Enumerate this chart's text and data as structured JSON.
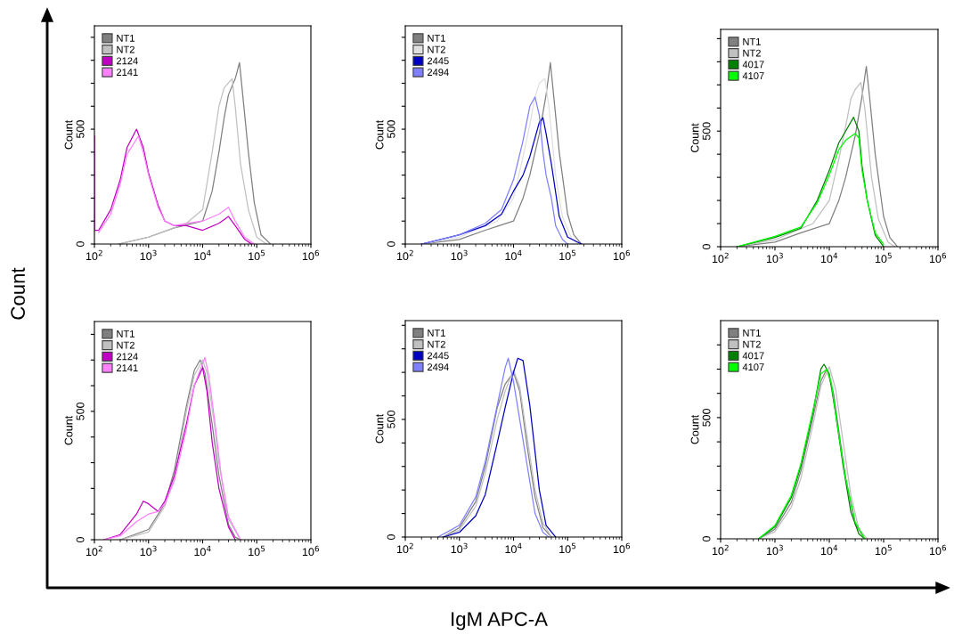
{
  "chart_data": [
    {
      "type": "line",
      "ylabel": "Count",
      "annotations": [
        "Count",
        "IgM APC-A"
      ],
      "legend": "top left",
      "log": "x",
      "grid": false,
      "marker": "none",
      "line_style": "solid",
      "xlim": [
        100,
        1000000
      ],
      "xticks": [
        {
          "value": 100,
          "label": "10$^{2}$"
        },
        {
          "value": 1000,
          "label": "10$^{3}$"
        },
        {
          "value": 10000,
          "label": "10$^{4}$"
        },
        {
          "value": 100000,
          "label": "10$^{5}$"
        },
        {
          "value": 1000000,
          "label": "10$^{6}$"
        }
      ],
      "ylim": [
        0,
        950
      ],
      "yticks": [
        0,
        {
          "value": 100,
          "label": null
        },
        {
          "value": 200,
          "label": null
        },
        {
          "value": 300,
          "label": null
        },
        {
          "value": 400,
          "label": null
        },
        500,
        {
          "value": 600,
          "label": null
        },
        {
          "value": 700,
          "label": null
        },
        {
          "value": 800,
          "label": null
        },
        {
          "value": 900,
          "label": null
        }
      ],
      "series": [
        {
          "name": "NT1",
          "color": "#808080",
          "x": [
            280,
            1000,
            3000,
            10000,
            15000,
            20000,
            25000,
            30000,
            40000,
            48000,
            55000,
            70000,
            90000,
            120000,
            180000
          ],
          "values": [
            0,
            30,
            70,
            100,
            230,
            400,
            550,
            650,
            720,
            790,
            650,
            400,
            180,
            40,
            0
          ]
        },
        {
          "name": "NT2",
          "color": "#c0c0c0",
          "x": [
            280,
            1000,
            5000,
            10000,
            15000,
            20000,
            25000,
            35000,
            40000,
            50000,
            70000,
            100000,
            150000
          ],
          "values": [
            0,
            30,
            90,
            150,
            400,
            600,
            680,
            720,
            600,
            350,
            150,
            30,
            0
          ]
        },
        {
          "name": "2124",
          "color": "#c000c0",
          "x": [
            100,
            100,
            120,
            200,
            300,
            400,
            600,
            800,
            1000,
            1500,
            2000,
            3000,
            5000,
            10000,
            20000,
            30000,
            40000,
            60000,
            80000
          ],
          "values": [
            470,
            60,
            60,
            150,
            280,
            420,
            500,
            420,
            310,
            170,
            100,
            80,
            80,
            60,
            90,
            120,
            80,
            20,
            0
          ]
        },
        {
          "name": "2141",
          "color": "#ff80ff",
          "x": [
            120,
            200,
            300,
            400,
            650,
            800,
            1000,
            1500,
            2000,
            3000,
            5000,
            10000,
            20000,
            30000,
            40000,
            60000,
            90000
          ],
          "values": [
            50,
            130,
            260,
            390,
            470,
            400,
            300,
            160,
            100,
            80,
            90,
            100,
            130,
            160,
            100,
            30,
            0
          ]
        }
      ]
    },
    {
      "type": "line",
      "ylabel": "Count",
      "legend": "top left",
      "log": "x",
      "grid": false,
      "marker": "none",
      "line_style": "solid",
      "xlim": [
        100,
        1000000
      ],
      "xticks": [
        {
          "value": 100,
          "label": "10$^{2}$"
        },
        {
          "value": 1000,
          "label": "10$^{3}$"
        },
        {
          "value": 10000,
          "label": "10$^{4}$"
        },
        {
          "value": 100000,
          "label": "10$^{5}$"
        },
        {
          "value": 1000000,
          "label": "10$^{6}$"
        }
      ],
      "ylim": [
        0,
        950
      ],
      "yticks": [
        0,
        {
          "value": 100,
          "label": null
        },
        {
          "value": 200,
          "label": null
        },
        {
          "value": 300,
          "label": null
        },
        {
          "value": 400,
          "label": null
        },
        500,
        {
          "value": 600,
          "label": null
        },
        {
          "value": 700,
          "label": null
        },
        {
          "value": 800,
          "label": null
        },
        {
          "value": 900,
          "label": null
        }
      ],
      "series": [
        {
          "name": "NT1",
          "color": "#808080",
          "x": [
            200,
            1000,
            3000,
            10000,
            15000,
            20000,
            30000,
            40000,
            48000,
            55000,
            70000,
            100000,
            130000,
            180000
          ],
          "values": [
            0,
            20,
            60,
            100,
            200,
            300,
            480,
            650,
            790,
            650,
            400,
            130,
            40,
            0
          ]
        },
        {
          "name": "NT2",
          "color": "#e0e0e0",
          "x": [
            200,
            1000,
            5000,
            10000,
            15000,
            20000,
            25000,
            30000,
            38000,
            45000,
            60000,
            80000,
            120000,
            160000
          ],
          "values": [
            0,
            30,
            100,
            200,
            380,
            520,
            640,
            700,
            720,
            600,
            300,
            120,
            20,
            0
          ]
        },
        {
          "name": "2445",
          "color": "#0000c0",
          "x": [
            200,
            1000,
            3000,
            6000,
            10000,
            15000,
            20000,
            30000,
            35000,
            40000,
            50000,
            70000,
            100000,
            180000
          ],
          "values": [
            0,
            40,
            80,
            130,
            230,
            300,
            380,
            530,
            550,
            480,
            350,
            120,
            30,
            0
          ]
        },
        {
          "name": "2494",
          "color": "#8080ff",
          "x": [
            200,
            1000,
            3000,
            6000,
            10000,
            15000,
            20000,
            25000,
            30000,
            35000,
            40000,
            50000,
            60000,
            80000,
            100000
          ],
          "values": [
            0,
            40,
            90,
            150,
            280,
            450,
            600,
            640,
            560,
            400,
            300,
            200,
            80,
            20,
            0
          ]
        }
      ]
    },
    {
      "type": "line",
      "ylabel": "Count",
      "legend": "top left",
      "log": "x",
      "grid": false,
      "marker": "none",
      "line_style": "solid",
      "xlim": [
        100,
        1000000
      ],
      "xticks": [
        {
          "value": 100,
          "label": "10$^{2}$"
        },
        {
          "value": 1000,
          "label": "10$^{3}$"
        },
        {
          "value": 10000,
          "label": "10$^{4}$"
        },
        {
          "value": 100000,
          "label": "10$^{5}$"
        },
        {
          "value": 1000000,
          "label": "10$^{6}$"
        }
      ],
      "ylim": [
        0,
        940
      ],
      "yticks": [
        0,
        {
          "value": 100,
          "label": null
        },
        {
          "value": 200,
          "label": null
        },
        {
          "value": 300,
          "label": null
        },
        {
          "value": 400,
          "label": null
        },
        500,
        {
          "value": 600,
          "label": null
        },
        {
          "value": 700,
          "label": null
        },
        {
          "value": 800,
          "label": null
        },
        {
          "value": 900,
          "label": null
        }
      ],
      "series": [
        {
          "name": "NT1",
          "color": "#808080",
          "x": [
            200,
            1000,
            3000,
            10000,
            15000,
            20000,
            30000,
            40000,
            48000,
            55000,
            70000,
            100000,
            130000,
            180000
          ],
          "values": [
            0,
            20,
            60,
            100,
            200,
            300,
            480,
            650,
            780,
            650,
            400,
            130,
            40,
            0
          ]
        },
        {
          "name": "NT2",
          "color": "#c0c0c0",
          "x": [
            200,
            1000,
            5000,
            10000,
            15000,
            20000,
            25000,
            30000,
            38000,
            45000,
            60000,
            80000,
            120000,
            160000
          ],
          "values": [
            0,
            30,
            100,
            200,
            380,
            520,
            640,
            680,
            710,
            600,
            300,
            120,
            20,
            0
          ]
        },
        {
          "name": "4017",
          "color": "#008000",
          "x": [
            200,
            1000,
            3000,
            6000,
            10000,
            15000,
            20000,
            28000,
            35000,
            40000,
            50000,
            70000,
            100000
          ],
          "values": [
            0,
            40,
            80,
            200,
            330,
            450,
            500,
            560,
            500,
            350,
            200,
            50,
            0
          ]
        },
        {
          "name": "4107",
          "color": "#00ff00",
          "x": [
            200,
            1000,
            3000,
            6000,
            10000,
            15000,
            20000,
            30000,
            35000,
            40000,
            50000,
            70000,
            100000
          ],
          "values": [
            0,
            45,
            85,
            190,
            310,
            420,
            460,
            490,
            470,
            330,
            200,
            60,
            10
          ]
        }
      ]
    },
    {
      "type": "line",
      "ylabel": "Count",
      "legend": "top left",
      "log": "x",
      "grid": false,
      "marker": "none",
      "line_style": "solid",
      "xlim": [
        100,
        1000000
      ],
      "xticks": [
        {
          "value": 100,
          "label": "10$^{2}$"
        },
        {
          "value": 1000,
          "label": "10$^{3}$"
        },
        {
          "value": 10000,
          "label": "10$^{4}$"
        },
        {
          "value": 100000,
          "label": "10$^{5}$"
        },
        {
          "value": 1000000,
          "label": "10$^{6}$"
        }
      ],
      "ylim": [
        0,
        850
      ],
      "yticks": [
        0,
        {
          "value": 100,
          "label": null
        },
        {
          "value": 200,
          "label": null
        },
        {
          "value": 300,
          "label": null
        },
        {
          "value": 400,
          "label": null
        },
        500,
        {
          "value": 600,
          "label": null
        },
        {
          "value": 700,
          "label": null
        },
        {
          "value": 800,
          "label": null
        }
      ],
      "series": [
        {
          "name": "NT1",
          "color": "#808080",
          "x": [
            300,
            1000,
            2000,
            3000,
            5000,
            7000,
            9000,
            11000,
            15000,
            20000,
            30000,
            40000,
            50000
          ],
          "values": [
            0,
            40,
            140,
            270,
            520,
            660,
            700,
            650,
            450,
            250,
            60,
            10,
            0
          ]
        },
        {
          "name": "NT2",
          "color": "#c0c0c0",
          "x": [
            300,
            1000,
            2000,
            3000,
            5000,
            7000,
            10000,
            12000,
            16000,
            20000,
            30000,
            50000
          ],
          "values": [
            0,
            30,
            130,
            240,
            500,
            640,
            700,
            650,
            470,
            300,
            80,
            0
          ]
        },
        {
          "name": "2124",
          "color": "#c000c0",
          "x": [
            150,
            300,
            600,
            800,
            1000,
            1500,
            2000,
            3000,
            5000,
            7000,
            10000,
            12000,
            15000,
            20000,
            30000,
            40000
          ],
          "values": [
            0,
            20,
            100,
            150,
            140,
            110,
            150,
            250,
            450,
            600,
            670,
            580,
            380,
            200,
            50,
            0
          ]
        },
        {
          "name": "2141",
          "color": "#ff80ff",
          "x": [
            150,
            300,
            600,
            1000,
            1500,
            2000,
            3000,
            5000,
            7000,
            11000,
            13000,
            17000,
            22000,
            30000,
            50000
          ],
          "values": [
            0,
            15,
            70,
            100,
            110,
            140,
            230,
            430,
            600,
            710,
            640,
            450,
            250,
            90,
            0
          ]
        }
      ]
    },
    {
      "type": "line",
      "ylabel": "Count",
      "legend": "top left",
      "log": "x",
      "grid": false,
      "marker": "none",
      "line_style": "solid",
      "xlim": [
        100,
        1000000
      ],
      "xticks": [
        {
          "value": 100,
          "label": "10$^{2}$"
        },
        {
          "value": 1000,
          "label": "10$^{3}$"
        },
        {
          "value": 10000,
          "label": "10$^{4}$"
        },
        {
          "value": 100000,
          "label": "10$^{5}$"
        },
        {
          "value": 1000000,
          "label": "10$^{6}$"
        }
      ],
      "ylim": [
        0,
        920
      ],
      "yticks": [
        0,
        {
          "value": 100,
          "label": null
        },
        {
          "value": 200,
          "label": null
        },
        {
          "value": 300,
          "label": null
        },
        {
          "value": 400,
          "label": null
        },
        500,
        {
          "value": 600,
          "label": null
        },
        {
          "value": 700,
          "label": null
        },
        {
          "value": 800,
          "label": null
        },
        {
          "value": 900,
          "label": null
        }
      ],
      "series": [
        {
          "name": "NT1",
          "color": "#808080",
          "x": [
            500,
            1000,
            2000,
            3000,
            5000,
            7000,
            10000,
            13000,
            18000,
            25000,
            35000,
            50000
          ],
          "values": [
            0,
            40,
            150,
            300,
            550,
            650,
            700,
            620,
            380,
            170,
            40,
            0
          ]
        },
        {
          "name": "NT2",
          "color": "#c0c0c0",
          "x": [
            500,
            1000,
            2000,
            3000,
            5000,
            7000,
            10000,
            13000,
            18000,
            25000,
            35000,
            50000
          ],
          "values": [
            0,
            30,
            130,
            270,
            500,
            620,
            710,
            640,
            420,
            200,
            60,
            0
          ]
        },
        {
          "name": "2445",
          "color": "#0000c0",
          "x": [
            500,
            1000,
            2000,
            3000,
            5000,
            7000,
            10000,
            12000,
            15000,
            20000,
            30000,
            40000,
            60000
          ],
          "values": [
            0,
            20,
            90,
            180,
            400,
            550,
            700,
            760,
            750,
            560,
            200,
            50,
            0
          ]
        },
        {
          "name": "2494",
          "color": "#8080ff",
          "x": [
            400,
            1000,
            2000,
            3000,
            5000,
            7000,
            8000,
            10000,
            13000,
            18000,
            25000,
            35000,
            45000
          ],
          "values": [
            0,
            50,
            170,
            320,
            560,
            720,
            760,
            660,
            500,
            300,
            100,
            20,
            0
          ]
        }
      ]
    },
    {
      "type": "line",
      "ylabel": "Count",
      "legend": "top left",
      "log": "x",
      "grid": false,
      "marker": "none",
      "line_style": "solid",
      "xlim": [
        100,
        1000000
      ],
      "xticks": [
        {
          "value": 100,
          "label": "10$^{2}$"
        },
        {
          "value": 1000,
          "label": "10$^{3}$"
        },
        {
          "value": 10000,
          "label": "10$^{4}$"
        },
        {
          "value": 100000,
          "label": "10$^{5}$"
        },
        {
          "value": 1000000,
          "label": "10$^{6}$"
        }
      ],
      "ylim": [
        0,
        900
      ],
      "yticks": [
        0,
        {
          "value": 100,
          "label": null
        },
        {
          "value": 200,
          "label": null
        },
        {
          "value": 300,
          "label": null
        },
        {
          "value": 400,
          "label": null
        },
        500,
        {
          "value": 600,
          "label": null
        },
        {
          "value": 700,
          "label": null
        },
        {
          "value": 800,
          "label": null
        }
      ],
      "series": [
        {
          "name": "NT1",
          "color": "#808080",
          "x": [
            500,
            1000,
            2000,
            3000,
            5000,
            7000,
            9000,
            12000,
            16000,
            20000,
            30000,
            45000
          ],
          "values": [
            0,
            40,
            150,
            280,
            500,
            650,
            700,
            600,
            400,
            250,
            60,
            0
          ]
        },
        {
          "name": "NT2",
          "color": "#c0c0c0",
          "x": [
            500,
            1000,
            2000,
            3000,
            5000,
            7000,
            10000,
            13000,
            18000,
            25000,
            35000,
            50000
          ],
          "values": [
            0,
            30,
            130,
            250,
            470,
            630,
            710,
            620,
            400,
            180,
            40,
            0
          ]
        },
        {
          "name": "4017",
          "color": "#008000",
          "x": [
            500,
            1000,
            2000,
            3000,
            5000,
            7000,
            8000,
            10000,
            13000,
            18000,
            25000,
            35000,
            45000
          ],
          "values": [
            0,
            50,
            170,
            300,
            520,
            700,
            720,
            680,
            520,
            300,
            110,
            20,
            0
          ]
        },
        {
          "name": "4107",
          "color": "#00ff00",
          "x": [
            500,
            1000,
            2000,
            3000,
            5000,
            7000,
            9000,
            11000,
            14000,
            20000,
            30000,
            45000
          ],
          "values": [
            0,
            55,
            180,
            310,
            530,
            680,
            700,
            640,
            470,
            250,
            70,
            0
          ]
        }
      ]
    }
  ]
}
